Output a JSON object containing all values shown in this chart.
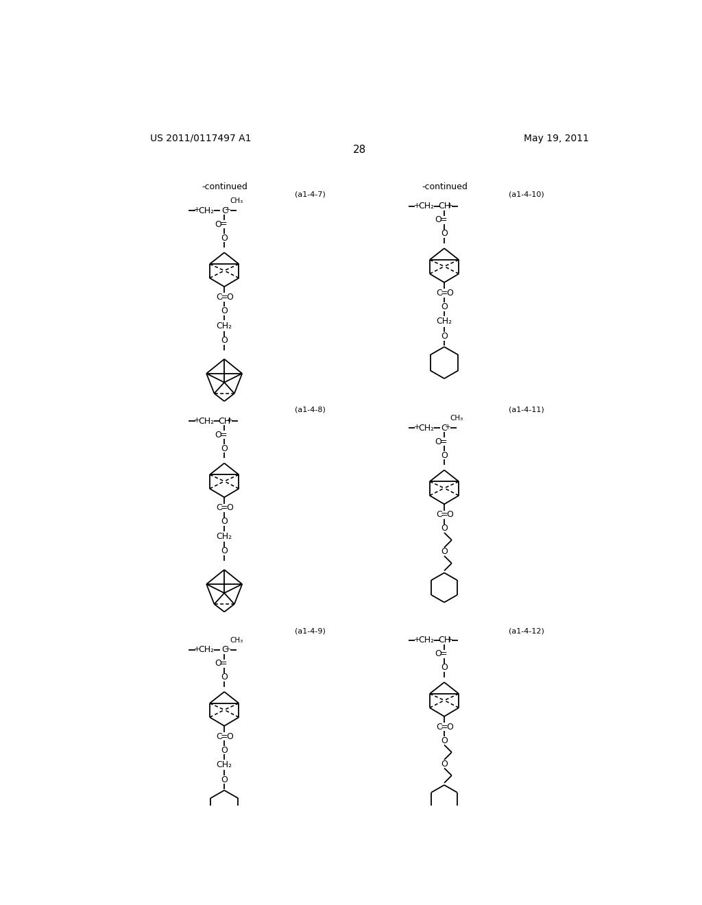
{
  "page_number": "28",
  "patent_number": "US 2011/0117497 A1",
  "date": "May 19, 2011",
  "background_color": "#ffffff",
  "text_color": "#000000",
  "continued_label": "-continued",
  "lw": 1.3
}
